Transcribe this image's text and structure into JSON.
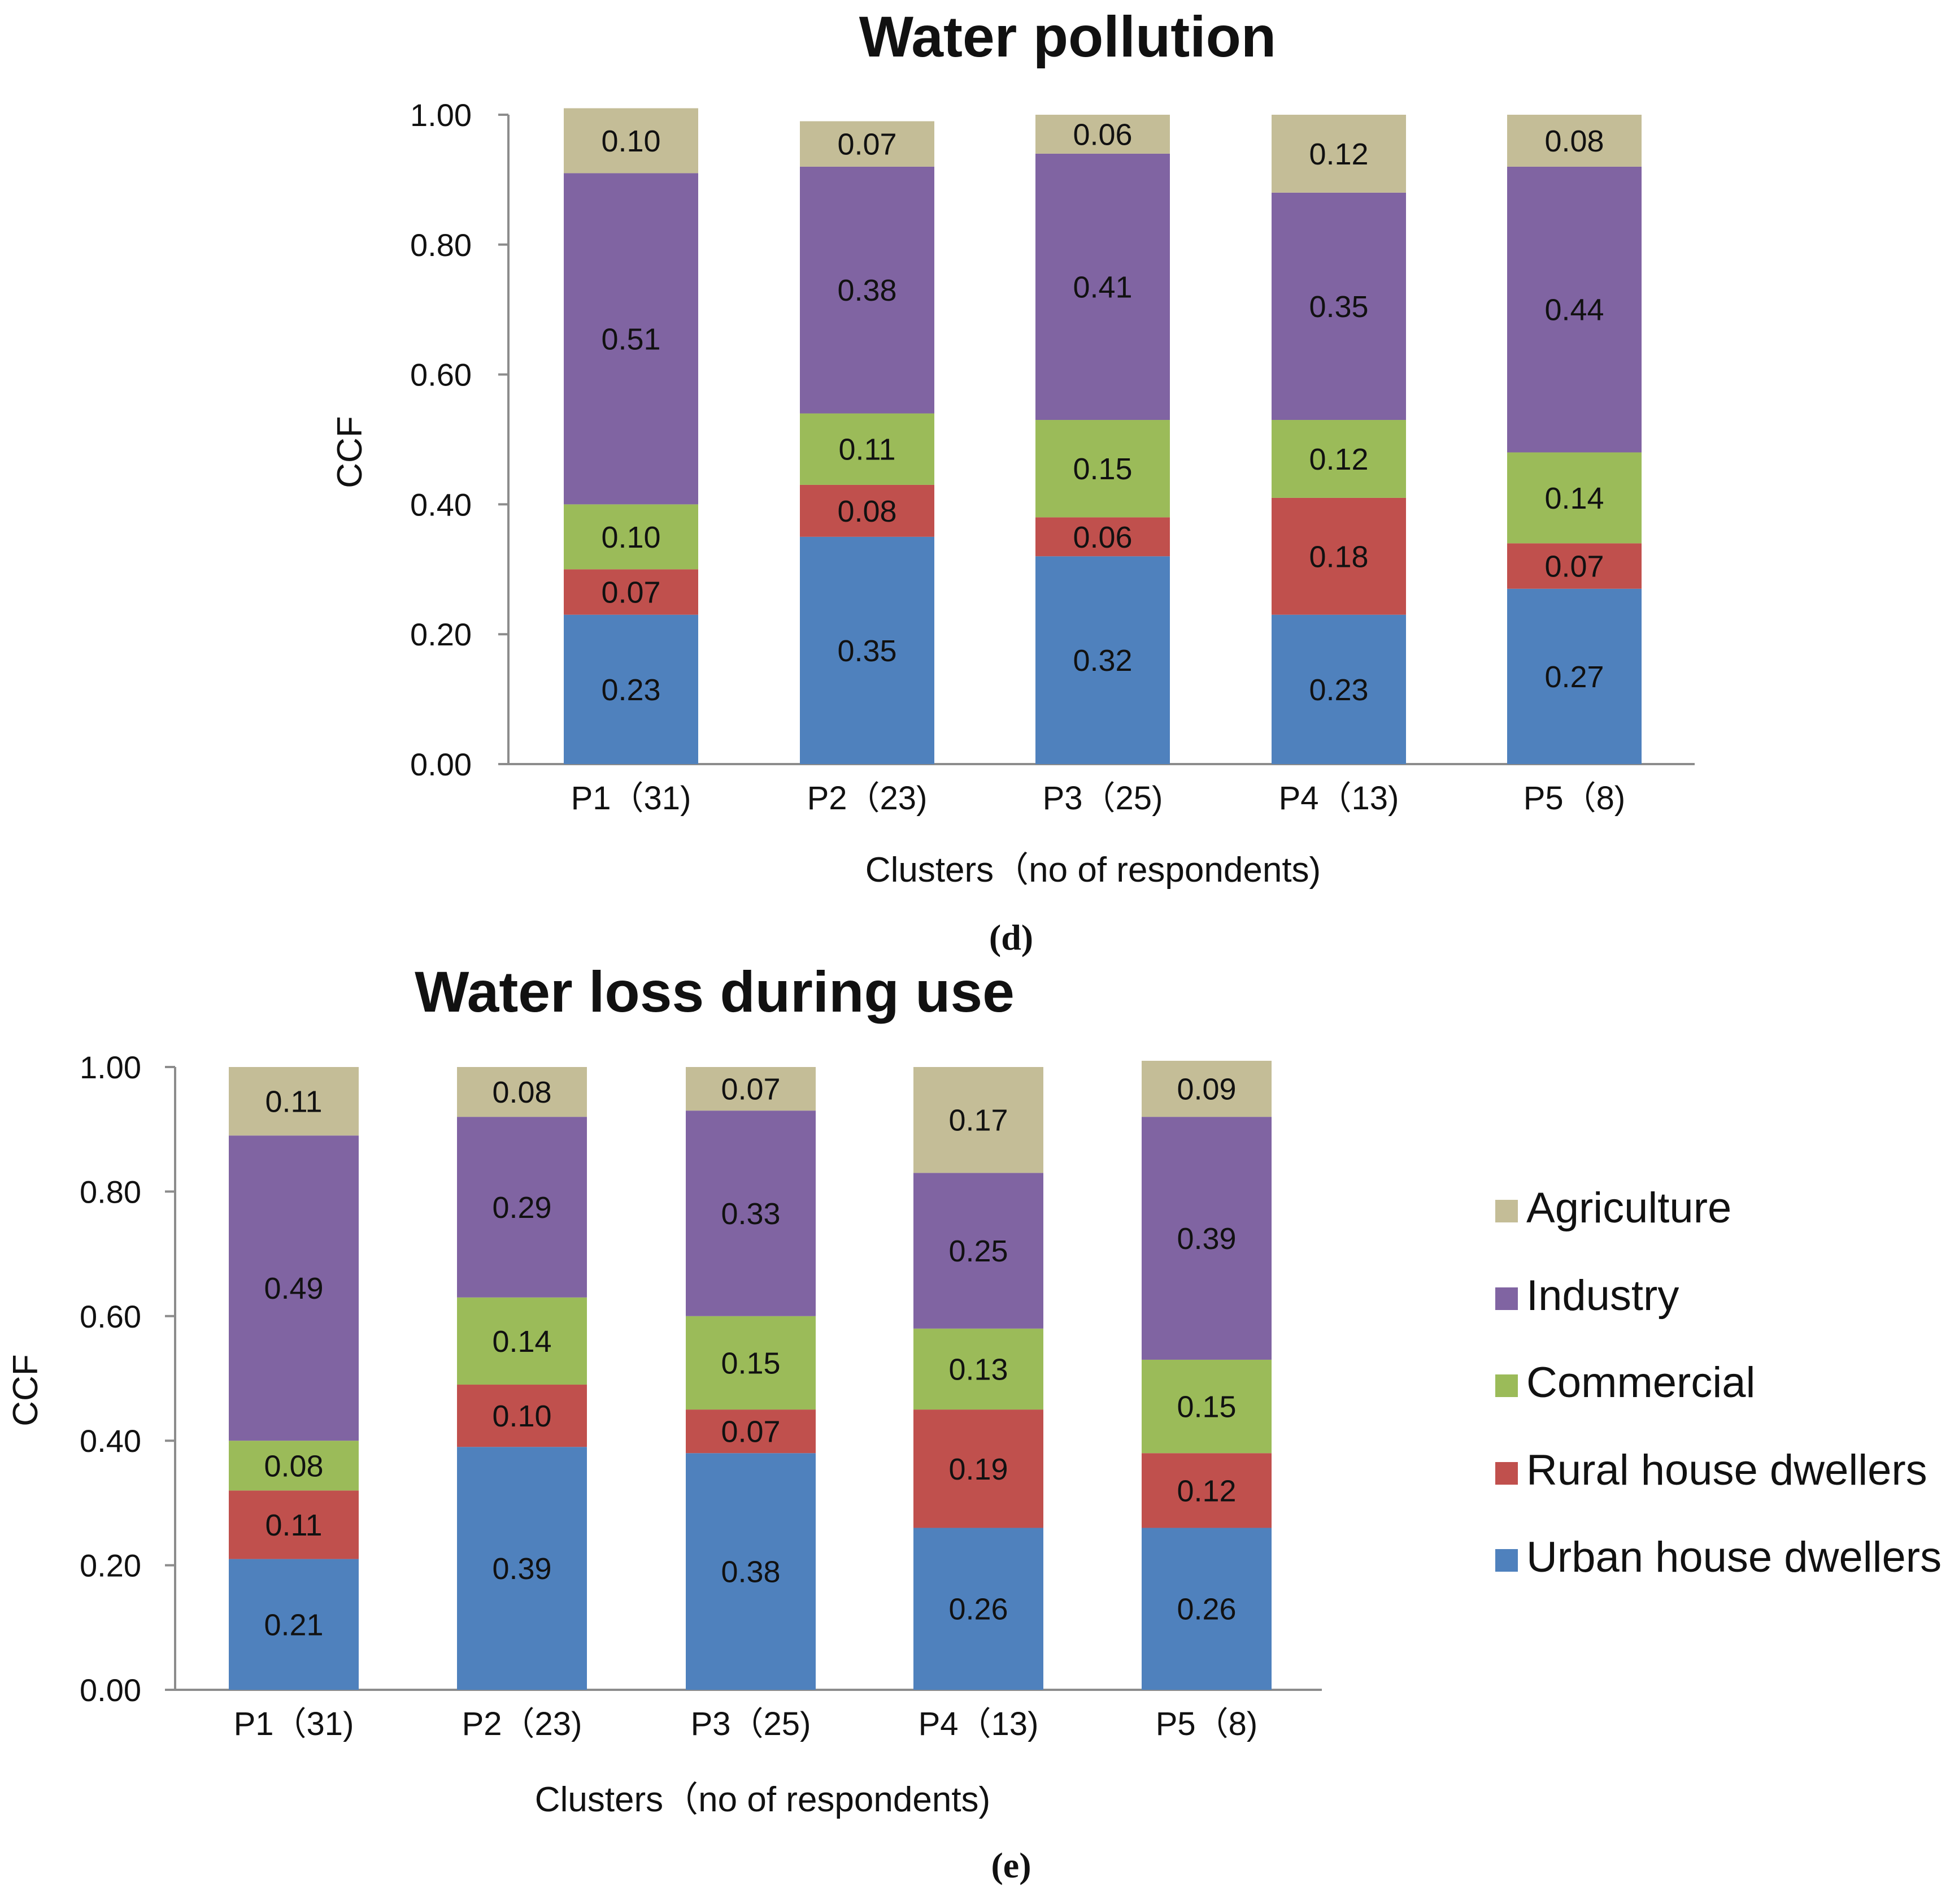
{
  "colors": {
    "Agriculture": "#c4bd97",
    "Industry": "#8064a2",
    "Commercial": "#9bbb59",
    "Rural house dwellers": "#c0504d",
    "Urban house dwellers": "#4f81bd"
  },
  "legend": [
    "Agriculture",
    "Industry",
    "Commercial",
    "Rural house dwellers",
    "Urban house dwellers"
  ],
  "chart_data": [
    {
      "type": "bar",
      "stacked": true,
      "title": "Water pollution",
      "panel_label": "(d)",
      "panel_letter": "d",
      "xlabel": "Clusters（no of respondents)",
      "ylabel": "CCF",
      "ylim": [
        0,
        1
      ],
      "yticks": [
        "0.00",
        "0.20",
        "0.40",
        "0.60",
        "0.80",
        "1.00"
      ],
      "categories": [
        "P1（31)",
        "P2（23)",
        "P3（25)",
        "P4（13)",
        "P5（8)"
      ],
      "series": [
        {
          "name": "Urban house dwellers",
          "values": [
            0.23,
            0.35,
            0.32,
            0.23,
            0.27
          ],
          "labels": [
            "0.23",
            "0.35",
            "0.32",
            "0.23",
            "0.27"
          ]
        },
        {
          "name": "Rural house dwellers",
          "values": [
            0.07,
            0.08,
            0.06,
            0.18,
            0.07
          ],
          "labels": [
            "0.07",
            "0.08",
            "0.06",
            "0.18",
            "0.07"
          ]
        },
        {
          "name": "Commercial",
          "values": [
            0.1,
            0.11,
            0.15,
            0.12,
            0.14
          ],
          "labels": [
            "0.10",
            "0.11",
            "0.15",
            "0.12",
            "0.14"
          ]
        },
        {
          "name": "Industry",
          "values": [
            0.51,
            0.38,
            0.41,
            0.35,
            0.44
          ],
          "labels": [
            "0.51",
            "0.38",
            "0.41",
            "0.35",
            "0.44"
          ]
        },
        {
          "name": "Agriculture",
          "values": [
            0.1,
            0.07,
            0.06,
            0.12,
            0.08
          ],
          "labels": [
            "0.10",
            "0.07",
            "0.06",
            "0.12",
            "0.08"
          ]
        }
      ]
    },
    {
      "type": "bar",
      "stacked": true,
      "title": "Water loss during use",
      "panel_label": "(e)",
      "panel_letter": "e",
      "xlabel": "Clusters（no of respondents)",
      "ylabel": "CCF",
      "ylim": [
        0,
        1
      ],
      "yticks": [
        "0.00",
        "0.20",
        "0.40",
        "0.60",
        "0.80",
        "1.00"
      ],
      "categories": [
        "P1（31)",
        "P2（23)",
        "P3（25)",
        "P4（13)",
        "P5（8)"
      ],
      "series": [
        {
          "name": "Urban house dwellers",
          "values": [
            0.21,
            0.39,
            0.38,
            0.26,
            0.26
          ],
          "labels": [
            "0.21",
            "0.39",
            "0.38",
            "0.26",
            "0.26"
          ]
        },
        {
          "name": "Rural house dwellers",
          "values": [
            0.11,
            0.1,
            0.07,
            0.19,
            0.12
          ],
          "labels": [
            "0.11",
            "0.10",
            "0.07",
            "0.19",
            "0.12"
          ]
        },
        {
          "name": "Commercial",
          "values": [
            0.08,
            0.14,
            0.15,
            0.13,
            0.15
          ],
          "labels": [
            "0.08",
            "0.14",
            "0.15",
            "0.13",
            "0.15"
          ]
        },
        {
          "name": "Industry",
          "values": [
            0.49,
            0.29,
            0.33,
            0.25,
            0.39
          ],
          "labels": [
            "0.49",
            "0.29",
            "0.33",
            "0.25",
            "0.39"
          ]
        },
        {
          "name": "Agriculture",
          "values": [
            0.11,
            0.08,
            0.07,
            0.17,
            0.09
          ],
          "labels": [
            "0.11",
            "0.08",
            "0.07",
            "0.17",
            "0.09"
          ]
        }
      ]
    }
  ]
}
